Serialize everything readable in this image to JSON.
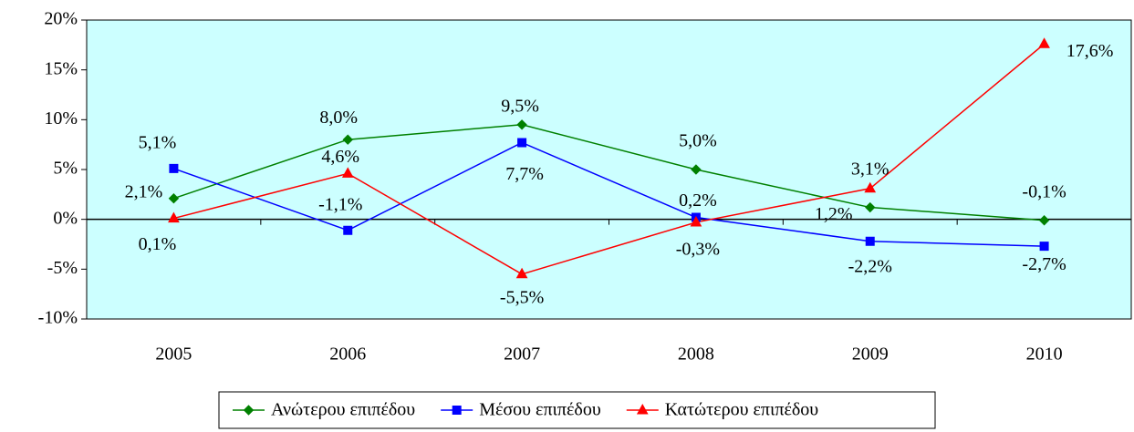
{
  "chart_data": {
    "type": "line",
    "categories": [
      "2005",
      "2006",
      "2007",
      "2008",
      "2009",
      "2010"
    ],
    "series": [
      {
        "name": "Ανώτερου επιπέδου",
        "color": "#008000",
        "marker": "diamond",
        "values": [
          2.1,
          8.0,
          9.5,
          5.0,
          1.2,
          -0.1
        ],
        "value_labels": [
          "2,1%",
          "8,0%",
          "9,5%",
          "5,0%",
          "1,2%",
          "-0,1%"
        ]
      },
      {
        "name": "Μέσου επιπέδου",
        "color": "#0000ff",
        "marker": "square",
        "values": [
          5.1,
          -1.1,
          7.7,
          0.2,
          -2.2,
          -2.7
        ],
        "value_labels": [
          "5,1%",
          "-1,1%",
          "7,7%",
          "0,2%",
          "-2,2%",
          "-2,7%"
        ]
      },
      {
        "name": "Κατώτερου επιπέδου",
        "color": "#ff0000",
        "marker": "triangle",
        "values": [
          0.1,
          4.6,
          -5.5,
          -0.3,
          3.1,
          17.6
        ],
        "value_labels": [
          "0,1%",
          "4,6%",
          "-5,5%",
          "-0,3%",
          "3,1%",
          "17,6%"
        ]
      }
    ],
    "ylim": [
      -10,
      20
    ],
    "yticks": [
      {
        "value": -10,
        "label": "-10%"
      },
      {
        "value": -5,
        "label": "-5%"
      },
      {
        "value": 0,
        "label": "0%"
      },
      {
        "value": 5,
        "label": "5%"
      },
      {
        "value": 10,
        "label": "10%"
      },
      {
        "value": 15,
        "label": "15%"
      },
      {
        "value": 20,
        "label": "20%"
      }
    ],
    "plot_background": "#ccffff",
    "legend": "bottom"
  }
}
